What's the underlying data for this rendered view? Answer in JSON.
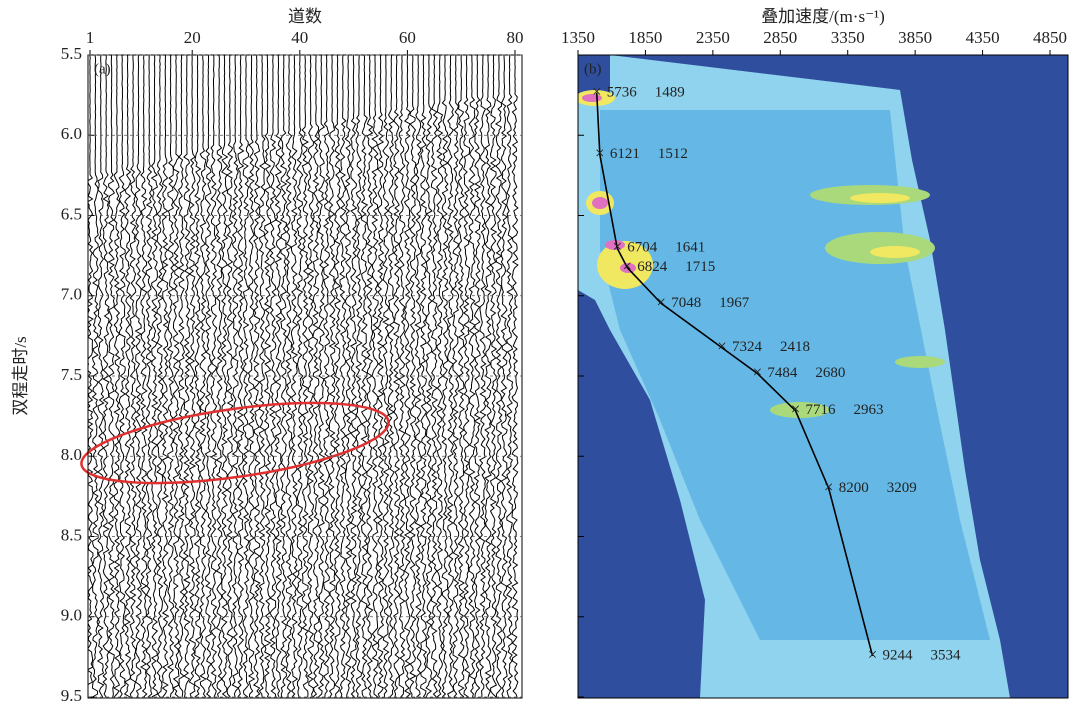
{
  "chart_data": [
    {
      "type": "wiggle",
      "panel": "(a)",
      "xlabel": "道数",
      "ylabel": "双程走时/s",
      "xlim": [
        1,
        80
      ],
      "xticks": [
        1,
        20,
        40,
        60,
        80
      ],
      "ylim": [
        9.5,
        5.5
      ],
      "yticks": [
        {
          "value": 5.5,
          "label": "5.5"
        },
        {
          "value": 6,
          "label": "6.0"
        },
        {
          "value": 6.5,
          "label": "6.5"
        },
        {
          "value": 7,
          "label": "7.0"
        },
        {
          "value": 7.5,
          "label": "7.5"
        },
        {
          "value": 8,
          "label": "8.0"
        },
        {
          "value": 8.5,
          "label": "8.5"
        },
        {
          "value": 9,
          "label": "9.0"
        },
        {
          "value": 9.5,
          "label": "9.5"
        }
      ]
    },
    {
      "type": "line",
      "panel": "(b)",
      "xlabel": "叠加速度/(m·s⁻¹)",
      "color": "#000000",
      "xlim": [
        1350,
        4850
      ],
      "xticks": [
        1350,
        1850,
        2350,
        2850,
        3350,
        3850,
        4350,
        4850
      ],
      "ylim": [
        9.5,
        5.5
      ],
      "yticks": [
        5.5,
        6,
        6.5,
        7,
        7.5,
        8,
        8.5,
        9,
        9.5
      ],
      "x": [
        1489,
        1512,
        1641,
        1715,
        1967,
        2418,
        2680,
        2963,
        3209,
        3534
      ],
      "values": [
        5.736,
        6.121,
        6.704,
        6.824,
        7.048,
        7.324,
        7.484,
        7.716,
        8.2,
        9.244
      ],
      "value_labels": [
        "5736",
        "6121",
        "6704",
        "6824",
        "7048",
        "7324",
        "7484",
        "7716",
        "8200",
        "9244"
      ]
    }
  ]
}
